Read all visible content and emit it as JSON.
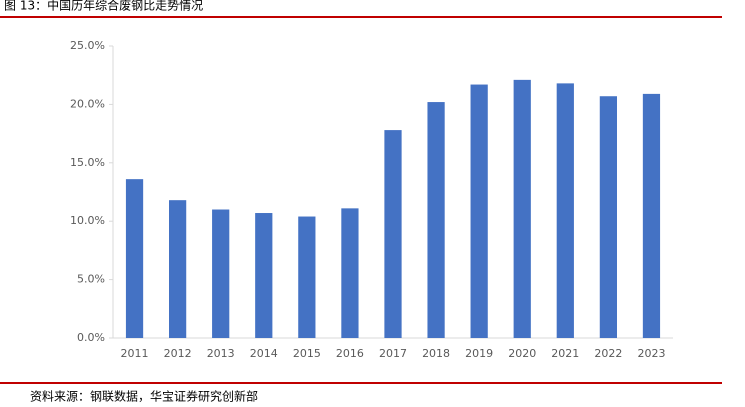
{
  "chart_data": {
    "type": "bar",
    "title": "图 13：中国历年综合废钢比走势情况",
    "source": "资料来源：钢联数据，华宝证券研究创新部",
    "categories": [
      "2011",
      "2012",
      "2013",
      "2014",
      "2015",
      "2016",
      "2017",
      "2018",
      "2019",
      "2020",
      "2021",
      "2022",
      "2023"
    ],
    "values": [
      13.6,
      11.8,
      11.0,
      10.7,
      10.4,
      11.1,
      17.8,
      20.2,
      21.7,
      22.1,
      21.8,
      20.7,
      20.9
    ],
    "color": "#4472c4",
    "ylim": [
      0,
      25
    ],
    "yticks": [
      {
        "value": 0,
        "label": "0.0%"
      },
      {
        "value": 5,
        "label": "5.0%"
      },
      {
        "value": 10,
        "label": "10.0%"
      },
      {
        "value": 15,
        "label": "15.0%"
      },
      {
        "value": 20,
        "label": "20.0%"
      },
      {
        "value": 25,
        "label": "25.0%"
      }
    ],
    "grid": false
  }
}
